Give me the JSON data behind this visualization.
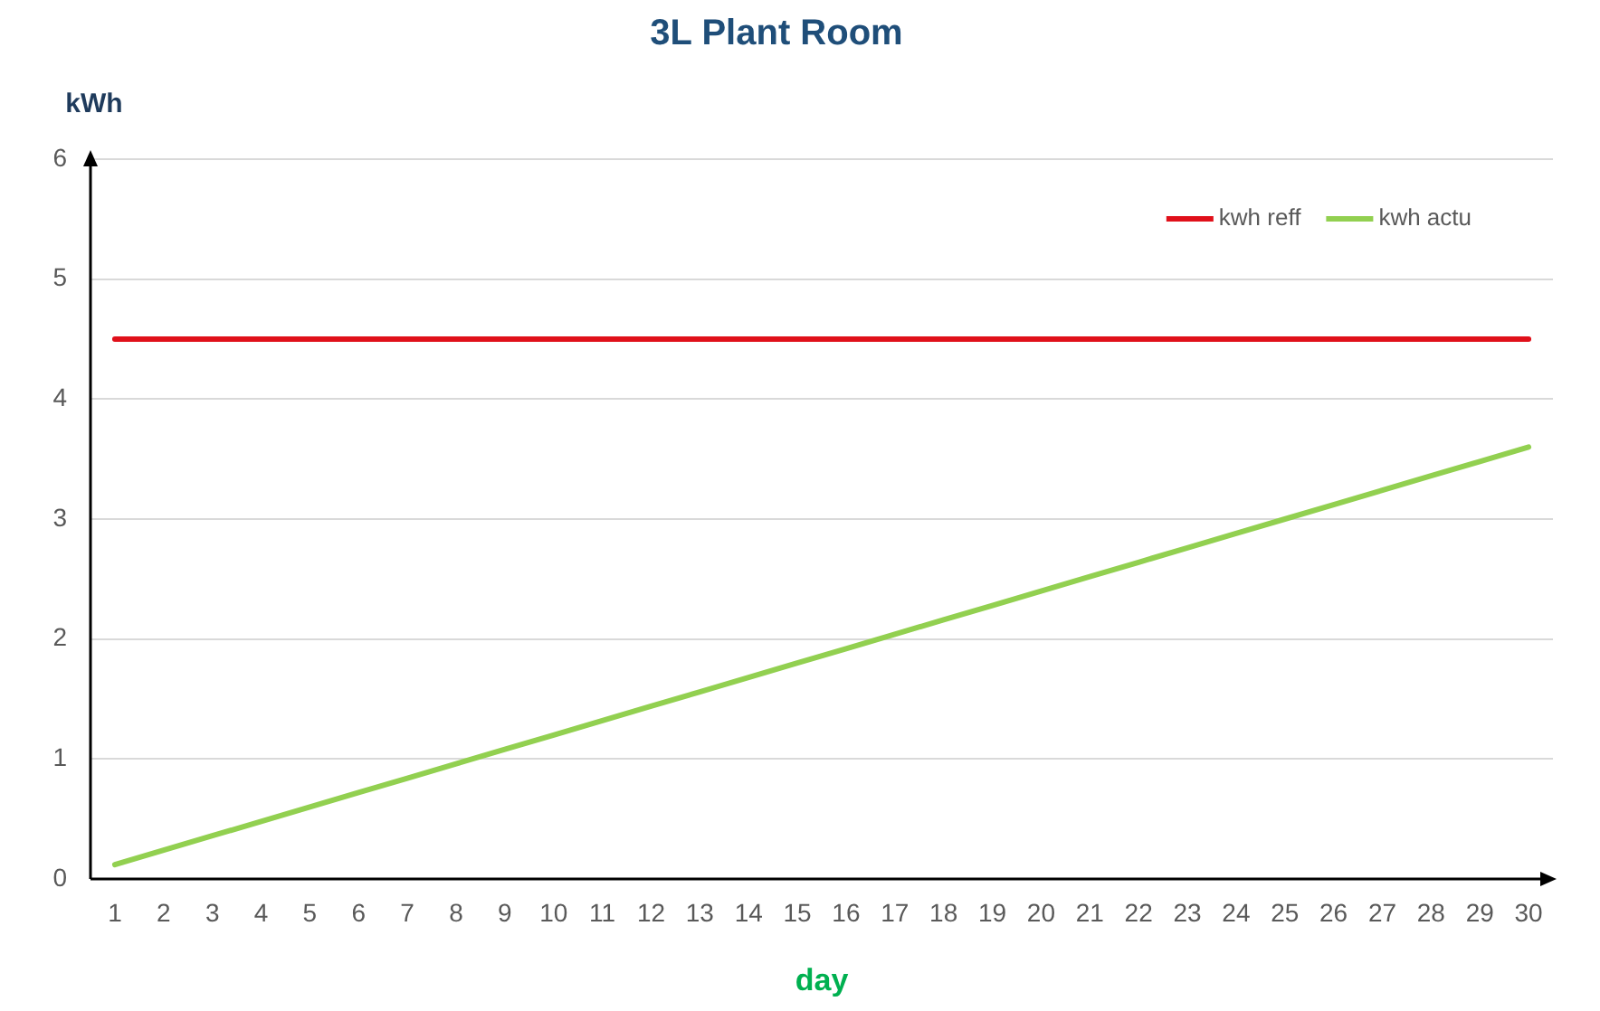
{
  "chart_data": {
    "type": "line",
    "title": "3L Plant Room",
    "xlabel": "day",
    "ylabel": "kWh",
    "x": [
      1,
      2,
      3,
      4,
      5,
      6,
      7,
      8,
      9,
      10,
      11,
      12,
      13,
      14,
      15,
      16,
      17,
      18,
      19,
      20,
      21,
      22,
      23,
      24,
      25,
      26,
      27,
      28,
      29,
      30
    ],
    "series": [
      {
        "name": "kwh reff",
        "color": "#e0101a",
        "values": [
          4.5,
          4.5,
          4.5,
          4.5,
          4.5,
          4.5,
          4.5,
          4.5,
          4.5,
          4.5,
          4.5,
          4.5,
          4.5,
          4.5,
          4.5,
          4.5,
          4.5,
          4.5,
          4.5,
          4.5,
          4.5,
          4.5,
          4.5,
          4.5,
          4.5,
          4.5,
          4.5,
          4.5,
          4.5,
          4.5
        ]
      },
      {
        "name": "kwh actu",
        "color": "#92d050",
        "values": [
          0.12,
          0.24,
          0.36,
          0.48,
          0.6,
          0.72,
          0.84,
          0.96,
          1.08,
          1.2,
          1.32,
          1.44,
          1.56,
          1.68,
          1.8,
          1.92,
          2.04,
          2.16,
          2.28,
          2.4,
          2.52,
          2.64,
          2.76,
          2.88,
          3.0,
          3.12,
          3.24,
          3.36,
          3.48,
          3.6
        ]
      }
    ],
    "xlim": [
      0.5,
      30.5
    ],
    "xticks": [
      1,
      2,
      3,
      4,
      5,
      6,
      7,
      8,
      9,
      10,
      11,
      12,
      13,
      14,
      15,
      16,
      17,
      18,
      19,
      20,
      21,
      22,
      23,
      24,
      25,
      26,
      27,
      28,
      29,
      30
    ],
    "ylim": [
      0,
      6
    ],
    "yticks": [
      0,
      1,
      2,
      3,
      4,
      5,
      6
    ],
    "grid": "y",
    "legend": "top right"
  }
}
